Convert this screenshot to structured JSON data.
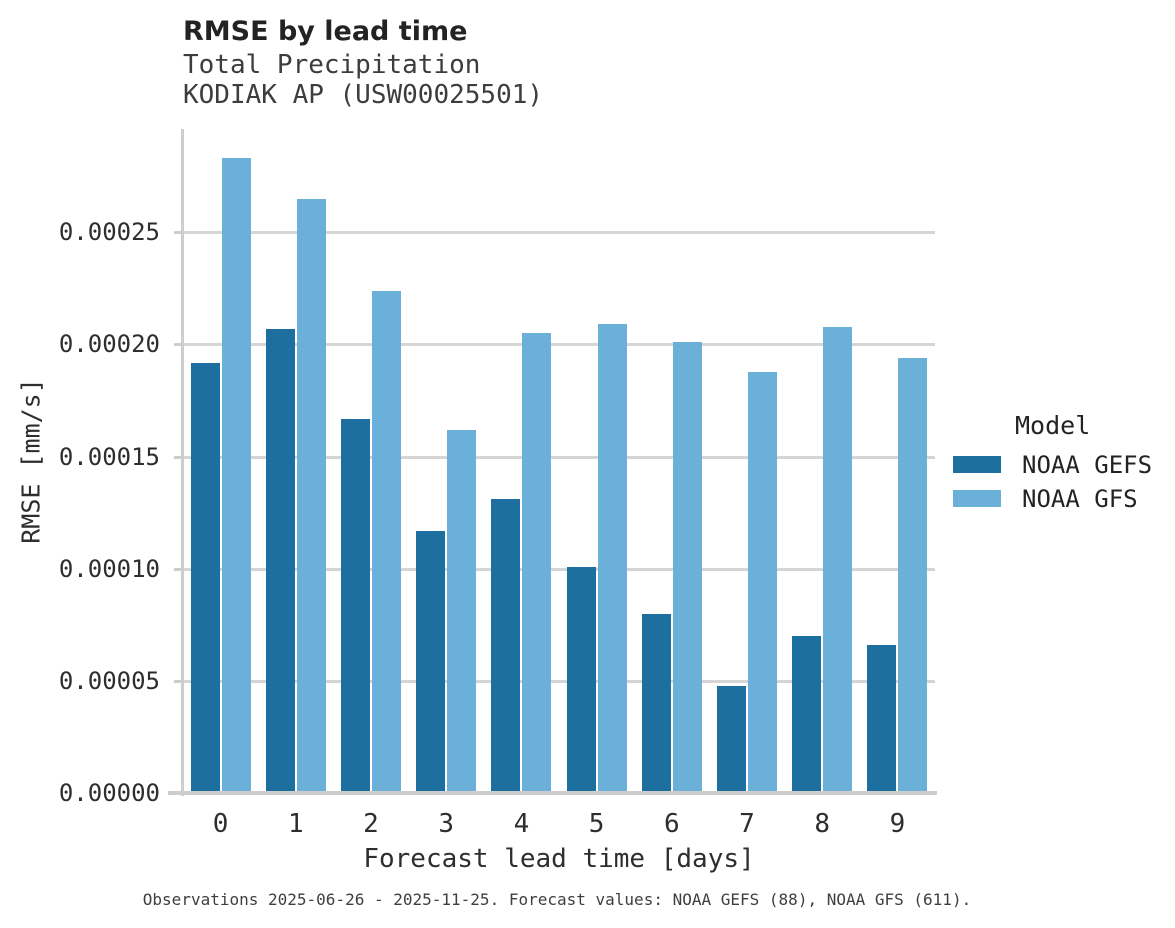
{
  "title": "RMSE by lead time",
  "subtitle_line1": "Total Precipitation",
  "subtitle_line2": "KODIAK AP (USW00025501)",
  "footer": "Observations 2025-06-26 - 2025-11-25. Forecast values: NOAA GEFS (88), NOAA GFS (611).",
  "colors": {
    "noaa_gefs": "#1d6fa0",
    "noaa_gfs": "#6bb0d8",
    "gridline": "#d5d5d5",
    "axis_line": "#cdcdcd"
  },
  "legend": {
    "title": "Model",
    "entries": [
      {
        "label": "NOAA GEFS",
        "color": "#1d6fa0"
      },
      {
        "label": "NOAA GFS",
        "color": "#6bb0d8"
      }
    ]
  },
  "chart_data": {
    "type": "bar",
    "title": "RMSE by lead time",
    "subtitle": [
      "Total Precipitation",
      "KODIAK AP (USW00025501)"
    ],
    "xlabel": "Forecast lead time [days]",
    "ylabel": "RMSE [mm/s]",
    "categories": [
      "0",
      "1",
      "2",
      "3",
      "4",
      "5",
      "6",
      "7",
      "8",
      "9"
    ],
    "series": [
      {
        "name": "NOAA GEFS",
        "color": "#1d6fa0",
        "values": [
          0.000191,
          0.000206,
          0.000166,
          0.000116,
          0.00013,
          0.0001,
          7.9e-05,
          4.7e-05,
          6.9e-05,
          6.5e-05
        ]
      },
      {
        "name": "NOAA GFS",
        "color": "#6bb0d8",
        "values": [
          0.000282,
          0.000264,
          0.000223,
          0.000161,
          0.000204,
          0.000208,
          0.0002,
          0.000187,
          0.000207,
          0.000193
        ]
      }
    ],
    "ylim": [
      0,
      0.000296
    ],
    "yticks": [
      0.0,
      5e-05,
      0.0001,
      0.00015,
      0.0002,
      0.00025
    ],
    "ytick_labels": [
      "0.00000",
      "0.00005",
      "0.00010",
      "0.00015",
      "0.00020",
      "0.00025"
    ],
    "grid": true,
    "legend_title": "Model",
    "legend_position": "right",
    "caption": "Observations 2025-06-26 - 2025-11-25. Forecast values: NOAA GEFS (88), NOAA GFS (611)."
  }
}
